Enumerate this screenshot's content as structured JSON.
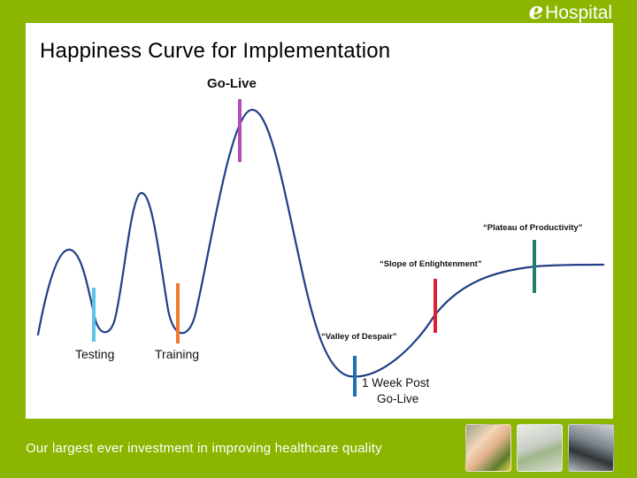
{
  "logo": {
    "mark": "e",
    "word": "Hospital"
  },
  "slide": {
    "title": "Happiness Curve for Implementation",
    "footer": "Our largest ever investment in improving healthcare quality"
  },
  "diagram": {
    "curve_color": "#1f3f86",
    "markers": [
      {
        "id": "testing",
        "label": "Testing",
        "color": "#5bc4ea"
      },
      {
        "id": "training",
        "label": "Training",
        "color": "#f07a2e"
      },
      {
        "id": "go-live",
        "label": "Go-Live",
        "color": "#b64ab7"
      },
      {
        "id": "one-week-post",
        "label": "1 Week Post Go-Live",
        "line1": "1 Week Post",
        "line2": "Go-Live",
        "color": "#1f6fb5"
      },
      {
        "id": "slope",
        "label": "“Slope of Enlightenment”",
        "color": "#e0202e"
      },
      {
        "id": "plateau",
        "label": "“Plateau of Productivity”",
        "color": "#1e7d6b"
      }
    ],
    "valley_label": "“Valley of Despair”"
  },
  "photos": [
    {
      "name": "patient-photo",
      "icon": "photo"
    },
    {
      "name": "keyboard-photo",
      "icon": "photo"
    },
    {
      "name": "handheld-device-photo",
      "icon": "photo"
    }
  ]
}
